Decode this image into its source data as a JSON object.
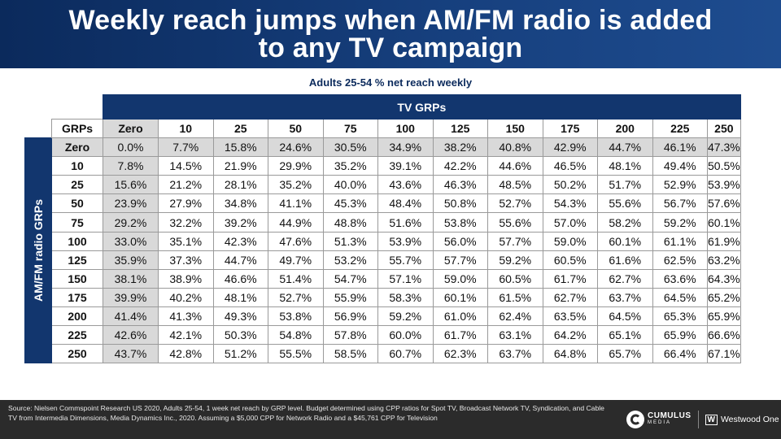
{
  "header": {
    "title": "Weekly reach jumps when AM/FM radio is added to any TV campaign"
  },
  "subtitle": "Adults 25-54 % net reach weekly",
  "chart_data": {
    "type": "table",
    "title": "Adults 25-54 % net reach weekly",
    "column_group_label": "TV GRPs",
    "row_group_label": "AM/FM radio GRPs",
    "corner_label": "GRPs",
    "columns": [
      "Zero",
      "10",
      "25",
      "50",
      "75",
      "100",
      "125",
      "150",
      "175",
      "200",
      "225",
      "250"
    ],
    "rows": [
      {
        "label": "Zero",
        "values": [
          "0.0%",
          "7.7%",
          "15.8%",
          "24.6%",
          "30.5%",
          "34.9%",
          "38.2%",
          "40.8%",
          "42.9%",
          "44.7%",
          "46.1%",
          "47.3%"
        ]
      },
      {
        "label": "10",
        "values": [
          "7.8%",
          "14.5%",
          "21.9%",
          "29.9%",
          "35.2%",
          "39.1%",
          "42.2%",
          "44.6%",
          "46.5%",
          "48.1%",
          "49.4%",
          "50.5%"
        ]
      },
      {
        "label": "25",
        "values": [
          "15.6%",
          "21.2%",
          "28.1%",
          "35.2%",
          "40.0%",
          "43.6%",
          "46.3%",
          "48.5%",
          "50.2%",
          "51.7%",
          "52.9%",
          "53.9%"
        ]
      },
      {
        "label": "50",
        "values": [
          "23.9%",
          "27.9%",
          "34.8%",
          "41.1%",
          "45.3%",
          "48.4%",
          "50.8%",
          "52.7%",
          "54.3%",
          "55.6%",
          "56.7%",
          "57.6%"
        ]
      },
      {
        "label": "75",
        "values": [
          "29.2%",
          "32.2%",
          "39.2%",
          "44.9%",
          "48.8%",
          "51.6%",
          "53.8%",
          "55.6%",
          "57.0%",
          "58.2%",
          "59.2%",
          "60.1%"
        ]
      },
      {
        "label": "100",
        "values": [
          "33.0%",
          "35.1%",
          "42.3%",
          "47.6%",
          "51.3%",
          "53.9%",
          "56.0%",
          "57.7%",
          "59.0%",
          "60.1%",
          "61.1%",
          "61.9%"
        ]
      },
      {
        "label": "125",
        "values": [
          "35.9%",
          "37.3%",
          "44.7%",
          "49.7%",
          "53.2%",
          "55.7%",
          "57.7%",
          "59.2%",
          "60.5%",
          "61.6%",
          "62.5%",
          "63.2%"
        ]
      },
      {
        "label": "150",
        "values": [
          "38.1%",
          "38.9%",
          "46.6%",
          "51.4%",
          "54.7%",
          "57.1%",
          "59.0%",
          "60.5%",
          "61.7%",
          "62.7%",
          "63.6%",
          "64.3%"
        ]
      },
      {
        "label": "175",
        "values": [
          "39.9%",
          "40.2%",
          "48.1%",
          "52.7%",
          "55.9%",
          "58.3%",
          "60.1%",
          "61.5%",
          "62.7%",
          "63.7%",
          "64.5%",
          "65.2%"
        ]
      },
      {
        "label": "200",
        "values": [
          "41.4%",
          "41.3%",
          "49.3%",
          "53.8%",
          "56.9%",
          "59.2%",
          "61.0%",
          "62.4%",
          "63.5%",
          "64.5%",
          "65.3%",
          "65.9%"
        ]
      },
      {
        "label": "225",
        "values": [
          "42.6%",
          "42.1%",
          "50.3%",
          "54.8%",
          "57.8%",
          "60.0%",
          "61.7%",
          "63.1%",
          "64.2%",
          "65.1%",
          "65.9%",
          "66.6%"
        ]
      },
      {
        "label": "250",
        "values": [
          "43.7%",
          "42.8%",
          "51.2%",
          "55.5%",
          "58.5%",
          "60.7%",
          "62.3%",
          "63.7%",
          "64.8%",
          "65.7%",
          "66.4%",
          "67.1%"
        ]
      }
    ]
  },
  "footer": {
    "source": "Source: Nielsen Commspoint Research US 2020, Adults 25-54, 1 week net reach by GRP level. Budget determined using CPP ratios for Spot TV, Broadcast Network TV, Syndication, and Cable TV from Intermedia Dimensions, Media Dynamics Inc., 2020. Assuming a $5,000 CPP for Network Radio and a $45,761 CPP for Television",
    "logo_cumulus_name": "CUMULUS",
    "logo_cumulus_sub": "MEDIA",
    "logo_westwood": "Westwood One",
    "logo_westwood_mark": "W"
  },
  "colors": {
    "header_bg": "#0b2a5c",
    "table_header_bg": "#12366e",
    "shade": "#d9d9d9",
    "footer_bg": "#2b2b2b"
  }
}
